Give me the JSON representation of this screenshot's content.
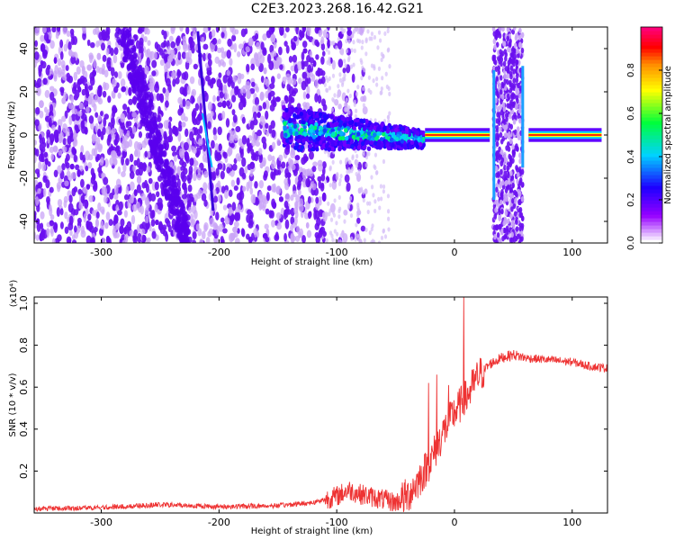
{
  "title": "C2E3.2023.268.16.42.G21",
  "colors": {
    "snr_line": "#ee3333",
    "spectrogram_base": "#7a1cf0",
    "colorbar": [
      "#ffffff",
      "#9000ff",
      "#2000ff",
      "#00c8ff",
      "#00ff40",
      "#ffff00",
      "#ff8000",
      "#ff0000",
      "#ff0080"
    ]
  },
  "chart_data": [
    {
      "type": "heatmap",
      "name": "spectrogram",
      "xlabel": "Height of straight line (km)",
      "ylabel": "Frequency (Hz)",
      "xlim": [
        -357,
        130
      ],
      "ylim": [
        -50,
        50
      ],
      "x_ticks": [
        -300,
        -200,
        -100,
        0,
        100
      ],
      "y_ticks": [
        -40,
        -20,
        0,
        20,
        40
      ],
      "colorbar": {
        "label": "Normalized spectral amplitude",
        "range": [
          0,
          1
        ],
        "ticks": [
          "0.0",
          "0.2",
          "0.4",
          "0.6",
          "0.8"
        ]
      },
      "features": [
        {
          "desc": "diffuse broadband noise",
          "x_range": [
            -357,
            -110
          ],
          "freq_range": [
            -50,
            50
          ],
          "amplitude": 0.15
        },
        {
          "desc": "diagonal streak",
          "from": [
            -218,
            48
          ],
          "to": [
            -205,
            -35
          ]
        },
        {
          "desc": "carrier band",
          "x_range": [
            -145,
            130
          ],
          "freq": 0,
          "amplitude": 0.85
        },
        {
          "desc": "vertical band",
          "x_range": [
            33,
            58
          ],
          "freq_range": [
            -50,
            50
          ],
          "amplitude": 0.2
        }
      ]
    },
    {
      "type": "line",
      "name": "snr",
      "xlabel": "Height of straight line (km)",
      "ylabel": "SNR (10 * v/v)",
      "y_multiplier": "(x10⁴)",
      "xlim": [
        -357,
        130
      ],
      "ylim": [
        0,
        1.03
      ],
      "x_ticks": [
        -300,
        -200,
        -100,
        0,
        100
      ],
      "y_ticks": [
        0.2,
        0.4,
        0.6,
        0.8,
        1.0
      ],
      "baseline_points": [
        [
          -357,
          0.02
        ],
        [
          -300,
          0.025
        ],
        [
          -250,
          0.04
        ],
        [
          -200,
          0.03
        ],
        [
          -150,
          0.035
        ],
        [
          -120,
          0.05
        ],
        [
          -100,
          0.08
        ],
        [
          -90,
          0.11
        ],
        [
          -80,
          0.09
        ],
        [
          -65,
          0.07
        ],
        [
          -50,
          0.05
        ],
        [
          -40,
          0.08
        ],
        [
          -30,
          0.16
        ],
        [
          -20,
          0.25
        ],
        [
          -10,
          0.38
        ],
        [
          0,
          0.48
        ],
        [
          10,
          0.55
        ],
        [
          20,
          0.65
        ],
        [
          30,
          0.71
        ],
        [
          40,
          0.74
        ],
        [
          50,
          0.755
        ],
        [
          60,
          0.74
        ],
        [
          80,
          0.73
        ],
        [
          100,
          0.72
        ],
        [
          115,
          0.7
        ],
        [
          130,
          0.69
        ]
      ],
      "spikes": [
        [
          -22,
          0.62
        ],
        [
          -15,
          0.66
        ],
        [
          -5,
          0.61
        ],
        [
          8,
          1.03
        ]
      ]
    }
  ]
}
